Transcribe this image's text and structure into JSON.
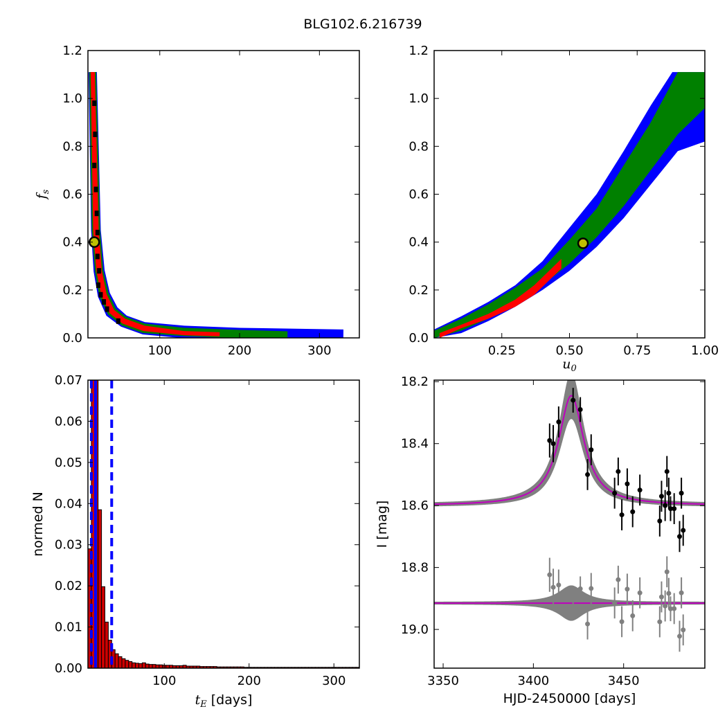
{
  "figure_title": "BLG102.6.216739",
  "chart_data": [
    {
      "id": "fs_vs_tE",
      "type": "heatmap",
      "xlabel": "",
      "ylabel": "f_s",
      "ylabel_main": "f",
      "ylabel_sub": "s",
      "xlim": [
        10,
        350
      ],
      "ylim": [
        0,
        1.2
      ],
      "xticks": [
        100,
        200,
        300
      ],
      "yticks": [
        0.0,
        0.2,
        0.4,
        0.6,
        0.8,
        1.0,
        1.2
      ],
      "ytick_labels": [
        "0.0",
        "0.2",
        "0.4",
        "0.6",
        "0.8",
        "1.0",
        "1.2"
      ],
      "colors": {
        "sigma3": "#0000ff",
        "sigma2": "#008000",
        "sigma1": "#ff0000",
        "best_bins": "#000000",
        "marker_fill": "#bfbf00",
        "marker_ring": "#000000"
      },
      "bands": [
        {
          "level": "sigma3",
          "points": [
            [
              16,
              1.11
            ],
            [
              20,
              0.45
            ],
            [
              24,
              0.28
            ],
            [
              30,
              0.18
            ],
            [
              40,
              0.11
            ],
            [
              55,
              0.07
            ],
            [
              80,
              0.04
            ],
            [
              130,
              0.025
            ],
            [
              200,
              0.016
            ],
            [
              330,
              0.012
            ]
          ],
          "widths": [
            6,
            7,
            8,
            9,
            10,
            9,
            9,
            9,
            9,
            8
          ]
        },
        {
          "level": "sigma2",
          "points": [
            [
              16,
              1.11
            ],
            [
              20,
              0.45
            ],
            [
              24,
              0.28
            ],
            [
              30,
              0.18
            ],
            [
              40,
              0.11
            ],
            [
              55,
              0.07
            ],
            [
              80,
              0.04
            ],
            [
              130,
              0.025
            ],
            [
              200,
              0.016
            ],
            [
              260,
              0.013
            ]
          ],
          "widths": [
            5,
            6,
            6,
            7,
            7,
            7,
            7,
            6,
            6,
            5
          ]
        },
        {
          "level": "sigma1",
          "points": [
            [
              16,
              1.11
            ],
            [
              20,
              0.45
            ],
            [
              24,
              0.28
            ],
            [
              30,
              0.18
            ],
            [
              40,
              0.11
            ],
            [
              55,
              0.07
            ],
            [
              80,
              0.04
            ],
            [
              130,
              0.02
            ],
            [
              175,
              0.015
            ]
          ],
          "widths": [
            3,
            4,
            4,
            4,
            4,
            4,
            4,
            3,
            3
          ]
        }
      ],
      "best_bins": [
        [
          18,
          0.98
        ],
        [
          19,
          0.85
        ],
        [
          18,
          0.72
        ],
        [
          20,
          0.62
        ],
        [
          21,
          0.52
        ],
        [
          22,
          0.44
        ],
        [
          22,
          0.34
        ],
        [
          24,
          0.28
        ],
        [
          23,
          0.22
        ],
        [
          26,
          0.18
        ],
        [
          30,
          0.15
        ],
        [
          34,
          0.12
        ],
        [
          48,
          0.07
        ]
      ],
      "best_fit": {
        "x": 18,
        "y": 0.4
      }
    },
    {
      "id": "fs_vs_u0",
      "type": "heatmap",
      "xlabel": "u_0",
      "xlabel_main": "u",
      "xlabel_sub": "0",
      "ylabel": "",
      "xlim": [
        0,
        1.0
      ],
      "ylim": [
        0,
        1.2
      ],
      "xticks": [
        0.25,
        0.5,
        0.75,
        1.0
      ],
      "xtick_labels": [
        "0.25",
        "0.50",
        "0.75",
        "1.00"
      ],
      "yticks": [
        0.0,
        0.2,
        0.4,
        0.6,
        0.8,
        1.0,
        1.2
      ],
      "ytick_labels": [
        "0.0",
        "0.2",
        "0.4",
        "0.6",
        "0.8",
        "1.0",
        "1.2"
      ],
      "colors": {
        "sigma3": "#0000ff",
        "sigma2": "#008000",
        "sigma1": "#ff0000",
        "marker_fill": "#bfbf00",
        "marker_ring": "#000000"
      },
      "bands": [
        {
          "level": "sigma3",
          "upper": [
            [
              0.0,
              0.035
            ],
            [
              0.1,
              0.09
            ],
            [
              0.2,
              0.15
            ],
            [
              0.3,
              0.22
            ],
            [
              0.4,
              0.32
            ],
            [
              0.5,
              0.46
            ],
            [
              0.6,
              0.6
            ],
            [
              0.7,
              0.78
            ],
            [
              0.8,
              0.97
            ],
            [
              0.88,
              1.11
            ],
            [
              1.0,
              1.11
            ]
          ],
          "lower": [
            [
              0.0,
              0.0
            ],
            [
              0.1,
              0.02
            ],
            [
              0.2,
              0.07
            ],
            [
              0.3,
              0.13
            ],
            [
              0.4,
              0.2
            ],
            [
              0.5,
              0.28
            ],
            [
              0.6,
              0.38
            ],
            [
              0.7,
              0.5
            ],
            [
              0.8,
              0.64
            ],
            [
              0.9,
              0.78
            ],
            [
              1.0,
              0.82
            ]
          ]
        },
        {
          "level": "sigma2",
          "upper": [
            [
              0.0,
              0.03
            ],
            [
              0.1,
              0.08
            ],
            [
              0.2,
              0.14
            ],
            [
              0.3,
              0.21
            ],
            [
              0.4,
              0.29
            ],
            [
              0.5,
              0.41
            ],
            [
              0.6,
              0.54
            ],
            [
              0.7,
              0.72
            ],
            [
              0.8,
              0.9
            ],
            [
              0.9,
              1.11
            ],
            [
              1.0,
              1.11
            ]
          ],
          "lower": [
            [
              0.0,
              0.0
            ],
            [
              0.1,
              0.03
            ],
            [
              0.2,
              0.08
            ],
            [
              0.3,
              0.14
            ],
            [
              0.4,
              0.22
            ],
            [
              0.5,
              0.31
            ],
            [
              0.6,
              0.42
            ],
            [
              0.7,
              0.55
            ],
            [
              0.8,
              0.7
            ],
            [
              0.9,
              0.85
            ],
            [
              1.0,
              0.96
            ]
          ]
        },
        {
          "level": "sigma1",
          "upper": [
            [
              0.02,
              0.02
            ],
            [
              0.1,
              0.055
            ],
            [
              0.2,
              0.1
            ],
            [
              0.3,
              0.16
            ],
            [
              0.37,
              0.22
            ],
            [
              0.47,
              0.33
            ]
          ],
          "lower": [
            [
              0.02,
              0.0
            ],
            [
              0.1,
              0.04
            ],
            [
              0.2,
              0.08
            ],
            [
              0.3,
              0.13
            ],
            [
              0.37,
              0.18
            ],
            [
              0.47,
              0.29
            ]
          ]
        }
      ],
      "best_fit": {
        "x": 0.55,
        "y": 0.395
      }
    },
    {
      "id": "tE_histogram",
      "type": "bar",
      "xlabel_math": "t",
      "xlabel_sub": "E",
      "xlabel_rest": "[days]",
      "ylabel": "normed N",
      "xlim": [
        10,
        330
      ],
      "ylim": [
        0,
        0.07
      ],
      "xticks": [
        100,
        200,
        300
      ],
      "yticks": [
        0.0,
        0.01,
        0.02,
        0.03,
        0.04,
        0.05,
        0.06,
        0.07
      ],
      "ytick_labels": [
        "0.00",
        "0.01",
        "0.02",
        "0.03",
        "0.04",
        "0.05",
        "0.06",
        "0.07"
      ],
      "bar_color": "#cc0000",
      "edge_color": "#000000",
      "bin_width": 4,
      "bins_start": 10,
      "values": [
        0.029,
        0.07,
        0.07,
        0.0385,
        0.0198,
        0.0112,
        0.0068,
        0.0045,
        0.0035,
        0.0028,
        0.0023,
        0.0019,
        0.0016,
        0.0013,
        0.0012,
        0.0011,
        0.0013,
        0.001,
        0.0009,
        0.0009,
        0.0008,
        0.0008,
        0.0007,
        0.0007,
        0.0007,
        0.0006,
        0.0006,
        0.0006,
        0.0007,
        0.0005,
        0.0005,
        0.0005,
        0.0005,
        0.0004,
        0.0004,
        0.0004,
        0.0004,
        0.0004,
        0.0003,
        0.0003,
        0.0003,
        0.0003,
        0.0003,
        0.0003,
        0.0003,
        0.0003,
        0.0002,
        0.0002,
        0.0002,
        0.0002,
        0.0002,
        0.0002,
        0.0002,
        0.0002,
        0.0002,
        0.0002,
        0.0002,
        0.0002,
        0.0002,
        0.0002,
        0.0002,
        0.0002,
        0.0002,
        0.0002,
        0.0002,
        0.0002,
        0.0002,
        0.0002,
        0.0002,
        0.0002,
        0.0002,
        0.0002,
        0.0002,
        0.0002,
        0.0002,
        0.0002,
        0.0002,
        0.0002,
        0.0002,
        0.0002
      ],
      "vlines": [
        {
          "x": 14,
          "style": "dashed",
          "color": "#0000ff"
        },
        {
          "x": 19,
          "style": "solid",
          "color": "#0000ff"
        },
        {
          "x": 38,
          "style": "dashed",
          "color": "#0000ff"
        }
      ]
    },
    {
      "id": "light_curve",
      "type": "scatter",
      "xlabel": "HJD-2450000 [days]",
      "ylabel": "I [mag]",
      "xlim": [
        3345,
        3495
      ],
      "ylim": [
        19.125,
        18.195
      ],
      "y_inverted": true,
      "xticks": [
        3350,
        3400,
        3450
      ],
      "yticks": [
        18.2,
        18.4,
        18.6,
        18.8,
        19.0
      ],
      "ytick_labels": [
        "18.2",
        "18.4",
        "18.6",
        "18.8",
        "19.0"
      ],
      "model": {
        "baseline": 18.6,
        "peak": 18.245,
        "t0": 3421,
        "width": 8.5,
        "band_extra": 0.045,
        "color": "#bf00bf",
        "band_color": "#808080"
      },
      "residual_offset": 18.915,
      "data_points": [
        {
          "x": 3409,
          "y": 18.39,
          "err": 0.055
        },
        {
          "x": 3411,
          "y": 18.4,
          "err": 0.06
        },
        {
          "x": 3414,
          "y": 18.33,
          "err": 0.05
        },
        {
          "x": 3422,
          "y": 18.26,
          "err": 0.04
        },
        {
          "x": 3426,
          "y": 18.29,
          "err": 0.04
        },
        {
          "x": 3430,
          "y": 18.5,
          "err": 0.05
        },
        {
          "x": 3432,
          "y": 18.42,
          "err": 0.05
        },
        {
          "x": 3445,
          "y": 18.56,
          "err": 0.05
        },
        {
          "x": 3447,
          "y": 18.49,
          "err": 0.045
        },
        {
          "x": 3449,
          "y": 18.63,
          "err": 0.05
        },
        {
          "x": 3452,
          "y": 18.53,
          "err": 0.05
        },
        {
          "x": 3455,
          "y": 18.62,
          "err": 0.05
        },
        {
          "x": 3459,
          "y": 18.55,
          "err": 0.05
        },
        {
          "x": 3470,
          "y": 18.65,
          "err": 0.05
        },
        {
          "x": 3471,
          "y": 18.57,
          "err": 0.05
        },
        {
          "x": 3473,
          "y": 18.6,
          "err": 0.05
        },
        {
          "x": 3474,
          "y": 18.49,
          "err": 0.05
        },
        {
          "x": 3475,
          "y": 18.56,
          "err": 0.05
        },
        {
          "x": 3476,
          "y": 18.61,
          "err": 0.04
        },
        {
          "x": 3478,
          "y": 18.61,
          "err": 0.05
        },
        {
          "x": 3481,
          "y": 18.7,
          "err": 0.05
        },
        {
          "x": 3482,
          "y": 18.56,
          "err": 0.05
        },
        {
          "x": 3483,
          "y": 18.68,
          "err": 0.05
        }
      ]
    }
  ]
}
